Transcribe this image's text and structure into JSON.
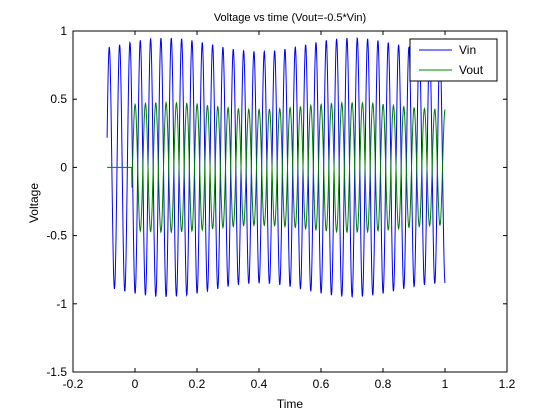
{
  "chart_data": {
    "type": "line",
    "title": "Voltage vs time (Vout=-0.5*Vin)",
    "xlabel": "Time",
    "ylabel": "Voltage",
    "xlim": [
      -0.2,
      1.2
    ],
    "ylim": [
      -1.5,
      1
    ],
    "xticks": [
      -0.2,
      0,
      0.2,
      0.4,
      0.6,
      0.8,
      1,
      1.2
    ],
    "xtick_labels": [
      "-0.2",
      "0",
      "0.2",
      "0.4",
      "0.6",
      "0.8",
      "1",
      "1.2"
    ],
    "yticks": [
      -1.5,
      -1,
      -0.5,
      0,
      0.5,
      1
    ],
    "ytick_labels": [
      "-1.5",
      "-1",
      "-0.5",
      "0",
      "0.5",
      "1"
    ],
    "grid": false,
    "legend_position": "top-right",
    "series": [
      {
        "name": "Vin",
        "color": "#0000ff",
        "x_range": [
          -0.09,
          1.0
        ],
        "frequency": 30,
        "amplitude_peak": 0.95,
        "amplitude_range": [
          0.85,
          0.95
        ]
      },
      {
        "name": "Vout",
        "color": "#008000",
        "x_range": [
          -0.09,
          1.0
        ],
        "flat_segment": {
          "x_range": [
            -0.09,
            -0.01
          ],
          "y": 0
        },
        "relation": "Vout = -0.5 * Vin",
        "amplitude_peak": 0.5
      }
    ]
  }
}
